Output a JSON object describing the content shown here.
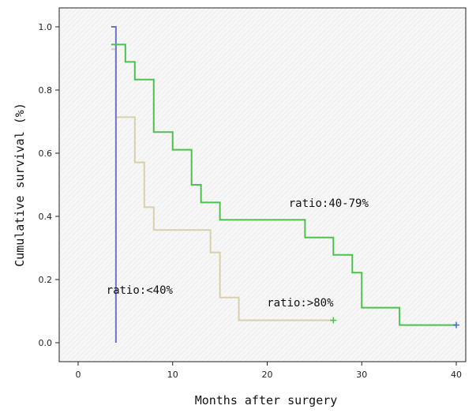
{
  "chart_data": {
    "type": "line",
    "subtype": "kaplan-meier-step",
    "xlabel": "Months after surgery",
    "ylabel": "Cumulative survival (%)",
    "xlim": [
      -2,
      41
    ],
    "ylim": [
      -0.06,
      1.06
    ],
    "xticks": [
      0,
      10,
      20,
      30,
      40
    ],
    "xtick_labels": [
      "0",
      "10",
      "20",
      "30",
      "40"
    ],
    "yticks": [
      0.0,
      0.2,
      0.4,
      0.6,
      0.8,
      1.0
    ],
    "ytick_labels": [
      "0.0",
      "0.2",
      "0.4",
      "0.6",
      "0.8",
      "1.0"
    ],
    "grid": false,
    "legend": "none",
    "series": [
      {
        "name": "ratio:<40%",
        "color": "#6b74c8",
        "steps": [
          [
            3.5,
            1.0
          ],
          [
            4,
            0.0
          ]
        ],
        "censored": []
      },
      {
        "name": "ratio:40-79%",
        "color": "#4cc24c",
        "steps": [
          [
            3.5,
            0.944
          ],
          [
            5,
            0.889
          ],
          [
            6,
            0.833
          ],
          [
            8,
            0.667
          ],
          [
            10,
            0.611
          ],
          [
            12,
            0.5
          ],
          [
            13,
            0.444
          ],
          [
            15,
            0.389
          ],
          [
            24,
            0.333
          ],
          [
            27,
            0.278
          ],
          [
            29,
            0.222
          ],
          [
            30,
            0.111
          ],
          [
            34,
            0.056
          ],
          [
            40,
            0.056
          ]
        ],
        "censored": [
          [
            40,
            0.056
          ]
        ]
      },
      {
        "name": "ratio:>80%",
        "color": "#d8cfac",
        "steps": [
          [
            3.5,
            0.929
          ],
          [
            4,
            0.714
          ],
          [
            6,
            0.571
          ],
          [
            7,
            0.429
          ],
          [
            8,
            0.357
          ],
          [
            14,
            0.286
          ],
          [
            15,
            0.143
          ],
          [
            17,
            0.071
          ],
          [
            27,
            0.071
          ]
        ],
        "censored": [
          [
            27,
            0.071
          ]
        ]
      }
    ],
    "annotations": [
      {
        "text": "ratio:40-79%",
        "x": 26.5,
        "y": 0.43
      },
      {
        "text": "ratio:<40%",
        "x": 6.5,
        "y": 0.155
      },
      {
        "text": "ratio:>80%",
        "x": 23.5,
        "y": 0.115
      }
    ],
    "censor_marker_color": "#4169c8"
  }
}
